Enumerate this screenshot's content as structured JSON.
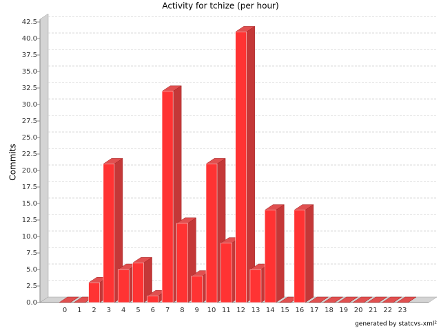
{
  "chart_data": {
    "type": "bar3d",
    "title": "Activity for tchize (per hour)",
    "y_label": "Commits",
    "footer": "generated by statcvs-xml²",
    "categories": [
      "0",
      "1",
      "2",
      "3",
      "4",
      "5",
      "6",
      "7",
      "8",
      "9",
      "10",
      "11",
      "12",
      "13",
      "14",
      "15",
      "16",
      "17",
      "18",
      "19",
      "20",
      "21",
      "22",
      "23"
    ],
    "values": [
      0,
      0,
      3,
      21,
      5,
      6,
      1,
      32,
      12,
      4,
      21,
      9,
      41,
      5,
      14,
      0,
      14,
      0,
      0,
      0,
      0,
      0,
      0,
      0
    ],
    "color": "#ff3333",
    "ylim": [
      0,
      42.5
    ],
    "yticks": [
      {
        "value": 0,
        "label": "0.0"
      },
      2.5,
      {
        "value": 5,
        "label": "5.0"
      },
      7.5,
      {
        "value": 10,
        "label": "10.0"
      },
      12.5,
      {
        "value": 15,
        "label": "15.0"
      },
      17.5,
      {
        "value": 20,
        "label": "20.0"
      },
      22.5,
      {
        "value": 25,
        "label": "25.0"
      },
      27.5,
      {
        "value": 30,
        "label": "30.0"
      },
      32.5,
      {
        "value": 35,
        "label": "35.0"
      },
      37.5,
      {
        "value": 40,
        "label": "40.0"
      },
      42.5
    ],
    "grid": true
  }
}
